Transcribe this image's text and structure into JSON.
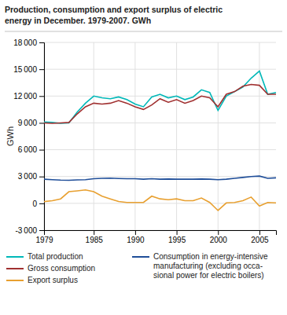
{
  "chart_data": {
    "type": "line",
    "title": "Production, consumption and export surplus of electric\nenergy in December. 1979-2007. GWh",
    "y_label": "GWh",
    "x": [
      1979,
      1980,
      1981,
      1982,
      1983,
      1984,
      1985,
      1986,
      1987,
      1988,
      1989,
      1990,
      1991,
      1992,
      1993,
      1994,
      1995,
      1996,
      1997,
      1998,
      1999,
      2000,
      2001,
      2002,
      2003,
      2004,
      2005,
      2006,
      2007
    ],
    "series": [
      {
        "name": "Total production",
        "color": "#00b8b8",
        "values": [
          9100,
          9050,
          8950,
          9000,
          10200,
          11200,
          12000,
          11800,
          11700,
          11900,
          11600,
          11100,
          10800,
          11900,
          12200,
          11800,
          12000,
          11600,
          11900,
          12700,
          12400,
          10400,
          12000,
          12500,
          13000,
          14000,
          14800,
          12200,
          12400
        ]
      },
      {
        "name": "Gross consumption",
        "color": "#a03030",
        "values": [
          9000,
          8950,
          9000,
          9050,
          10000,
          10800,
          11200,
          11100,
          11200,
          11500,
          11200,
          10800,
          10500,
          11000,
          11700,
          11300,
          11600,
          11200,
          11500,
          12000,
          11800,
          10800,
          12200,
          12500,
          13100,
          13300,
          13200,
          12200,
          12200
        ]
      },
      {
        "name": "Export surplus",
        "color": "#e8a030",
        "values": [
          200,
          300,
          500,
          1300,
          1400,
          1500,
          1300,
          800,
          500,
          200,
          100,
          100,
          100,
          800,
          500,
          400,
          500,
          300,
          300,
          600,
          100,
          -800,
          50,
          100,
          300,
          700,
          -300,
          100,
          50
        ]
      },
      {
        "name": "Consumption in energy-intensive\nmanufacturing (excluding occa-\nsional power for electric boilers)",
        "color": "#1f4e99",
        "values": [
          2700,
          2650,
          2600,
          2580,
          2620,
          2650,
          2750,
          2800,
          2820,
          2780,
          2750,
          2750,
          2700,
          2750,
          2700,
          2720,
          2700,
          2700,
          2700,
          2720,
          2700,
          2650,
          2700,
          2800,
          2900,
          3000,
          3050,
          2800,
          2850
        ]
      }
    ],
    "xlim": [
      1979,
      2007
    ],
    "xticks": [
      1979,
      1985,
      1990,
      1995,
      2000,
      2005
    ],
    "ylim": [
      -3000,
      18000
    ],
    "yticks": [
      {
        "value": -3000,
        "label": "-3 000"
      },
      0,
      {
        "value": 3000,
        "label": "3 000"
      },
      {
        "value": 6000,
        "label": "6 000"
      },
      {
        "value": 9000,
        "label": "9 000"
      },
      {
        "value": 12000,
        "label": "12 000"
      },
      {
        "value": 15000,
        "label": "15 000"
      },
      {
        "value": 18000,
        "label": "18 000"
      }
    ],
    "grid": true,
    "legend": "bottom"
  }
}
